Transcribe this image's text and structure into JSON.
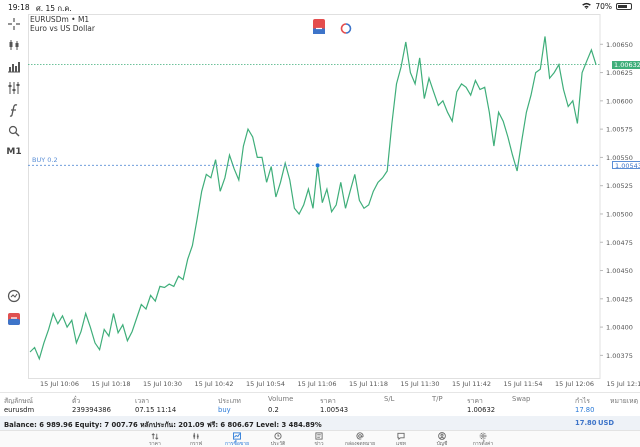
{
  "status_bar": {
    "time": "19:18",
    "date": "ศ. 15 ก.ค.",
    "battery": "70%",
    "battery_fraction": 0.7
  },
  "chart": {
    "symbol_title": "EURUSDm • M1",
    "symbol_desc": "Euro vs US Dollar",
    "order_label": "BUY 0.2",
    "current_price": "1.00632",
    "order_price": "1.00543",
    "line_color": "#3fae7a",
    "bid_line_color": "#3fae7a",
    "order_line_color": "#5b8fd6"
  },
  "chart_data": {
    "type": "line",
    "ylim": [
      1.00355,
      1.00675
    ],
    "y_ticks": [
      "1.00650",
      "1.00625",
      "1.00600",
      "1.00575",
      "1.00550",
      "1.00525",
      "1.00500",
      "1.00475",
      "1.00450",
      "1.00425",
      "1.00400",
      "1.00375"
    ],
    "y_tick_values": [
      1.0065,
      1.00625,
      1.006,
      1.00575,
      1.0055,
      1.00525,
      1.005,
      1.00475,
      1.0045,
      1.00425,
      1.004,
      1.00375
    ],
    "x_ticks": [
      "15 Jul 10:06",
      "15 Jul 10:18",
      "15 Jul 10:30",
      "15 Jul 10:42",
      "15 Jul 10:54",
      "15 Jul 11:06",
      "15 Jul 11:18",
      "15 Jul 11:30",
      "15 Jul 11:42",
      "15 Jul 11:54",
      "15 Jul 12:06",
      "15 Jul 12:18"
    ],
    "series": [
      {
        "values": [
          1.00378,
          1.00382,
          1.00372,
          1.00386,
          1.00398,
          1.00412,
          1.00403,
          1.0041,
          1.004,
          1.00406,
          1.00386,
          1.00396,
          1.00412,
          1.004,
          1.00386,
          1.0038,
          1.00398,
          1.00392,
          1.00412,
          1.00395,
          1.00402,
          1.00388,
          1.00396,
          1.00408,
          1.0042,
          1.00416,
          1.00428,
          1.00423,
          1.00436,
          1.00435,
          1.00438,
          1.00436,
          1.00445,
          1.00442,
          1.0046,
          1.00472,
          1.00495,
          1.0052,
          1.00535,
          1.00532,
          1.00548,
          1.0052,
          1.00532,
          1.00552,
          1.0054,
          1.0053,
          1.0056,
          1.00575,
          1.00568,
          1.0055,
          1.0055,
          1.00528,
          1.00542,
          1.00515,
          1.00528,
          1.00545,
          1.0053,
          1.00505,
          1.005,
          1.00508,
          1.00522,
          1.00505,
          1.00543,
          1.0051,
          1.00522,
          1.00502,
          1.00508,
          1.00528,
          1.00505,
          1.0052,
          1.00535,
          1.00512,
          1.00505,
          1.00508,
          1.0052,
          1.00528,
          1.00532,
          1.00538,
          1.0058,
          1.00615,
          1.0063,
          1.00652,
          1.00625,
          1.00615,
          1.00638,
          1.00602,
          1.0062,
          1.00608,
          1.00596,
          1.006,
          1.0059,
          1.00582,
          1.00608,
          1.00615,
          1.00612,
          1.00605,
          1.00618,
          1.0061,
          1.00612,
          1.0059,
          1.0056,
          1.0059,
          1.00582,
          1.00568,
          1.00552,
          1.00538,
          1.00565,
          1.0059,
          1.00605,
          1.00625,
          1.00628,
          1.00657,
          1.0062,
          1.00625,
          1.00632,
          1.0061,
          1.00595,
          1.006,
          1.0058,
          1.00625,
          1.00635,
          1.00645,
          1.00632
        ]
      }
    ]
  },
  "table": {
    "headers": [
      "สัญลักษณ์",
      "ตั๋ว",
      "เวลา",
      "ประเภท",
      "Volume",
      "ราคา",
      "S/L",
      "T/P",
      "ราคา",
      "Swap",
      "กำไร",
      "หมายเหตุ"
    ],
    "row": [
      "eurusdm",
      "239394386",
      "07.15 11:14",
      "buy",
      "0.2",
      "1.00543",
      "",
      "",
      "1.00632",
      "",
      "17.80",
      ""
    ],
    "balance_text": "Balance: 6 989.96 Equity: 7 007.76 หลักประกัน: 201.09 ฟรี: 6 806.67 Level: 3 484.89%",
    "balance_profit": "17.80",
    "currency": "USD"
  },
  "tabs": [
    {
      "label": "ราคา",
      "icon": "quotes-icon"
    },
    {
      "label": "กราฟ",
      "icon": "chart-icon"
    },
    {
      "label": "การซื้อขาย",
      "icon": "trade-icon",
      "active": true
    },
    {
      "label": "ประวัติ",
      "icon": "history-icon"
    },
    {
      "label": "ข่าว",
      "icon": "news-icon"
    },
    {
      "label": "กล่องจดหมาย",
      "icon": "mailbox-icon"
    },
    {
      "label": "แชท",
      "icon": "chat-icon"
    },
    {
      "label": "บัญชี",
      "icon": "account-icon"
    },
    {
      "label": "การตั้งค่า",
      "icon": "settings-icon"
    }
  ],
  "toolbar": [
    "crosshair-icon",
    "chart-type-icon",
    "objects-icon",
    "indicators-icon",
    "function-icon",
    "search-objects-icon",
    "timeframe"
  ],
  "timeframe_label": "M1"
}
